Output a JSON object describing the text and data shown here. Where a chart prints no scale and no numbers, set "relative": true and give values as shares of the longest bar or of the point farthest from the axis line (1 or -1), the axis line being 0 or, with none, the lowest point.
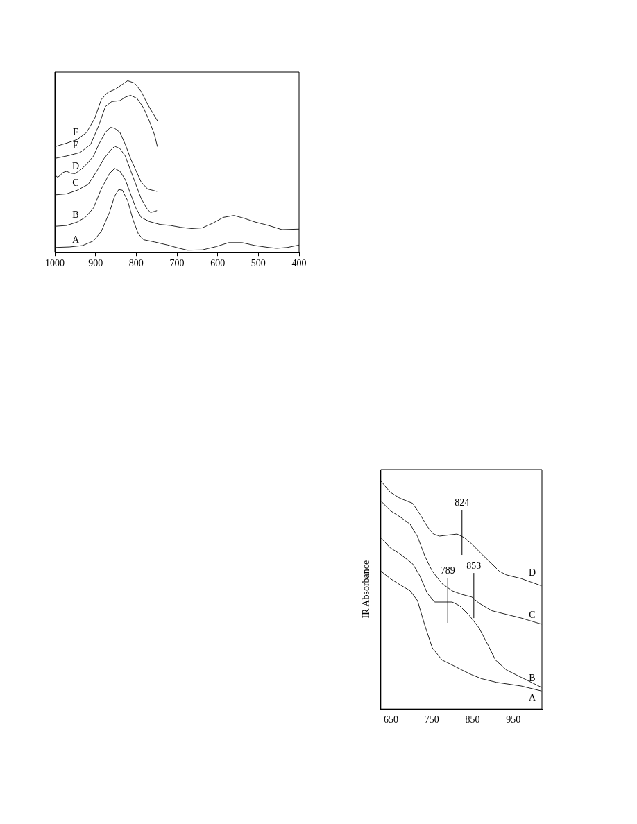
{
  "chart_data": [
    {
      "type": "line",
      "relative": true,
      "xlim": [
        1000,
        400
      ],
      "xticks": [
        1000,
        900,
        800,
        700,
        600,
        500,
        400
      ],
      "series": [
        {
          "name": "A",
          "color": "#222222",
          "x": [
            1000,
            964,
            932,
            905,
            886,
            866,
            853,
            843,
            834,
            821,
            808,
            795,
            782,
            755,
            723,
            697,
            674,
            638,
            605,
            573,
            540,
            508,
            475,
            455,
            429,
            400
          ],
          "values": [
            0.03,
            0.033,
            0.041,
            0.068,
            0.123,
            0.233,
            0.329,
            0.367,
            0.363,
            0.301,
            0.192,
            0.11,
            0.075,
            0.062,
            0.044,
            0.027,
            0.014,
            0.016,
            0.034,
            0.058,
            0.058,
            0.041,
            0.03,
            0.025,
            0.03,
            0.044
          ]
        },
        {
          "name": "B",
          "color": "#222222",
          "x": [
            1000,
            971,
            945,
            925,
            905,
            886,
            866,
            853,
            840,
            827,
            814,
            801,
            788,
            768,
            742,
            716,
            690,
            664,
            638,
            612,
            586,
            560,
            534,
            508,
            475,
            442,
            400
          ],
          "values": [
            0.153,
            0.158,
            0.178,
            0.205,
            0.26,
            0.37,
            0.459,
            0.49,
            0.473,
            0.425,
            0.342,
            0.26,
            0.205,
            0.181,
            0.164,
            0.158,
            0.147,
            0.14,
            0.144,
            0.171,
            0.205,
            0.216,
            0.199,
            0.178,
            0.158,
            0.134,
            0.137
          ]
        },
        {
          "name": "C",
          "color": "#222222",
          "x": [
            1000,
            971,
            945,
            918,
            899,
            879,
            863,
            853,
            840,
            827,
            814,
            801,
            788,
            775,
            765,
            755,
            749
          ],
          "values": [
            0.336,
            0.342,
            0.363,
            0.397,
            0.466,
            0.548,
            0.596,
            0.619,
            0.605,
            0.562,
            0.479,
            0.397,
            0.315,
            0.26,
            0.233,
            0.24,
            0.244
          ]
        },
        {
          "name": "D",
          "color": "#222222",
          "x": [
            1000,
            993,
            987,
            980,
            971,
            961,
            951,
            938,
            922,
            905,
            892,
            876,
            863,
            853,
            840,
            827,
            814,
            801,
            788,
            772,
            749
          ],
          "values": [
            0.452,
            0.438,
            0.449,
            0.466,
            0.473,
            0.462,
            0.459,
            0.479,
            0.514,
            0.562,
            0.63,
            0.699,
            0.729,
            0.723,
            0.699,
            0.63,
            0.548,
            0.479,
            0.411,
            0.37,
            0.356
          ]
        },
        {
          "name": "E",
          "color": "#222222",
          "x": [
            1000,
            971,
            938,
            912,
            892,
            876,
            860,
            840,
            827,
            814,
            798,
            782,
            768,
            755,
            748
          ],
          "values": [
            0.548,
            0.562,
            0.582,
            0.63,
            0.74,
            0.849,
            0.879,
            0.884,
            0.904,
            0.915,
            0.897,
            0.842,
            0.767,
            0.685,
            0.616
          ]
        },
        {
          "name": "F",
          "color": "#222222",
          "x": [
            1000,
            971,
            945,
            922,
            902,
            886,
            870,
            850,
            834,
            821,
            804,
            788,
            772,
            748
          ],
          "values": [
            0.616,
            0.637,
            0.658,
            0.699,
            0.781,
            0.89,
            0.932,
            0.952,
            0.979,
            1,
            0.986,
            0.938,
            0.863,
            0.767
          ]
        }
      ]
    },
    {
      "type": "line",
      "relative": true,
      "ylabel": "IR Absorbance",
      "xlim": [
        625,
        1020
      ],
      "xticks": [
        650,
        {
          "value": 700,
          "label": null
        },
        750,
        {
          "value": 800,
          "label": null
        },
        850,
        {
          "value": 900,
          "label": null
        },
        950,
        {
          "value": 1000,
          "label": null
        }
      ],
      "annotations": [
        {
          "text": "824",
          "x": 824,
          "y": 0.767
        },
        {
          "text": "853",
          "x": 853,
          "y": 0.49
        },
        {
          "text": "789",
          "x": 789,
          "y": 0.469
        }
      ],
      "series": [
        {
          "name": "A",
          "color": "#222222",
          "x": [
            625,
            648,
            672,
            697,
            715,
            733,
            751,
            775,
            800,
            824,
            848,
            872,
            909,
            969,
            1019
          ],
          "values": [
            0.605,
            0.572,
            0.545,
            0.518,
            0.475,
            0.366,
            0.269,
            0.215,
            0.193,
            0.171,
            0.15,
            0.133,
            0.117,
            0.101,
            0.079
          ]
        },
        {
          "name": "B",
          "color": "#222222",
          "x": [
            625,
            648,
            672,
            703,
            721,
            739,
            757,
            775,
            800,
            818,
            842,
            866,
            888,
            906,
            933,
            969,
            1019
          ],
          "values": [
            0.751,
            0.707,
            0.68,
            0.637,
            0.583,
            0.507,
            0.469,
            0.469,
            0.469,
            0.453,
            0.41,
            0.355,
            0.28,
            0.215,
            0.171,
            0.139,
            0.095
          ]
        },
        {
          "name": "C",
          "color": "#222222",
          "x": [
            625,
            648,
            672,
            697,
            715,
            733,
            751,
            775,
            800,
            824,
            848,
            866,
            897,
            933,
            969,
            1019
          ],
          "values": [
            0.913,
            0.87,
            0.843,
            0.81,
            0.756,
            0.67,
            0.605,
            0.55,
            0.518,
            0.502,
            0.491,
            0.464,
            0.431,
            0.415,
            0.399,
            0.372
          ]
        },
        {
          "name": "D",
          "color": "#222222",
          "x": [
            625,
            648,
            672,
            703,
            721,
            739,
            754,
            769,
            788,
            812,
            830,
            848,
            872,
            897,
            915,
            933,
            969,
            994,
            1019
          ],
          "values": [
            1,
            0.951,
            0.924,
            0.902,
            0.854,
            0.8,
            0.767,
            0.758,
            0.762,
            0.767,
            0.751,
            0.724,
            0.68,
            0.637,
            0.605,
            0.588,
            0.572,
            0.556,
            0.54
          ]
        }
      ]
    }
  ]
}
